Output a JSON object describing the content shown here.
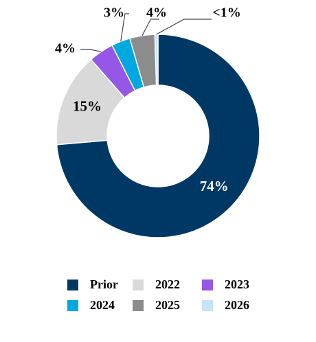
{
  "chart_data": {
    "type": "pie",
    "categories": [
      "Prior",
      "2022",
      "2023",
      "2024",
      "2025",
      "2026"
    ],
    "values": [
      74,
      15,
      4,
      3,
      4,
      0.5
    ],
    "value_labels": [
      "74%",
      "15%",
      "4%",
      "3%",
      "4%",
      "<1%"
    ],
    "colors": [
      "#003865",
      "#d9d9d9",
      "#9457e6",
      "#00a8e1",
      "#8c8c8c",
      "#c5e4f7"
    ]
  }
}
